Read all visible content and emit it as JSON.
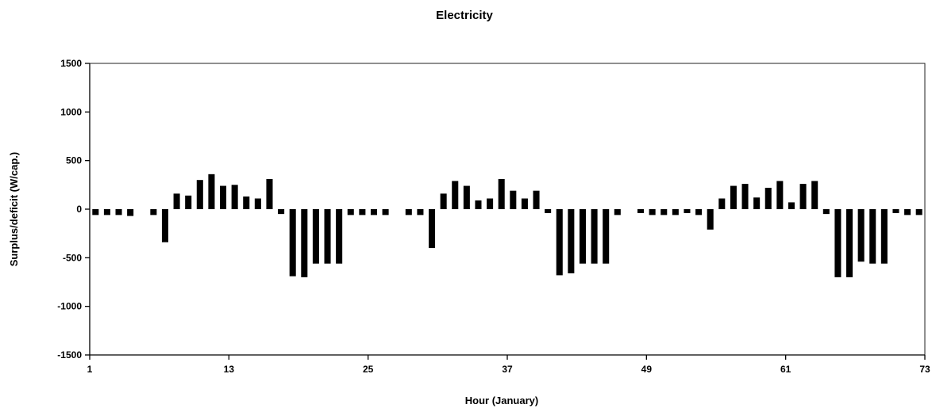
{
  "chart_data": {
    "type": "bar",
    "title": "Electricity",
    "xlabel": "Hour (January)",
    "ylabel": "Surplus/deficit (W/cap.)",
    "ylim": [
      -1500,
      1500
    ],
    "yticks": [
      1500,
      1000,
      500,
      0,
      -500,
      -1000,
      -1500
    ],
    "xlim": [
      1,
      73
    ],
    "xticks": [
      1,
      13,
      25,
      37,
      49,
      61,
      73
    ],
    "grid": false,
    "legend": "none",
    "bar_color": "#000000",
    "x": [
      2,
      3,
      4,
      5,
      6,
      7,
      8,
      9,
      10,
      11,
      12,
      13,
      14,
      15,
      16,
      17,
      18,
      19,
      20,
      21,
      22,
      23,
      24,
      25,
      26,
      27,
      28,
      29,
      30,
      31,
      32,
      33,
      34,
      35,
      36,
      37,
      38,
      39,
      40,
      41,
      42,
      43,
      44,
      45,
      46,
      47,
      48,
      49,
      50,
      51,
      52,
      53,
      54,
      55,
      56,
      57,
      58,
      59,
      60,
      61,
      62,
      63,
      64,
      65,
      66,
      67,
      68,
      69,
      70,
      71,
      72,
      73
    ],
    "values": [
      -60,
      -60,
      -60,
      -70,
      null,
      -60,
      -340,
      160,
      140,
      300,
      360,
      240,
      250,
      130,
      110,
      310,
      -50,
      -690,
      -700,
      -560,
      -560,
      -560,
      -60,
      -60,
      -60,
      -60,
      null,
      -60,
      -60,
      -400,
      160,
      290,
      240,
      90,
      110,
      310,
      190,
      110,
      190,
      -40,
      -680,
      -660,
      -560,
      -560,
      -560,
      -60,
      null,
      -40,
      -60,
      -60,
      -60,
      -40,
      -60,
      -210,
      110,
      240,
      260,
      120,
      220,
      290,
      70,
      260,
      290,
      -50,
      -700,
      -700,
      -540,
      -560,
      -560,
      -40,
      -60,
      -60
    ]
  }
}
